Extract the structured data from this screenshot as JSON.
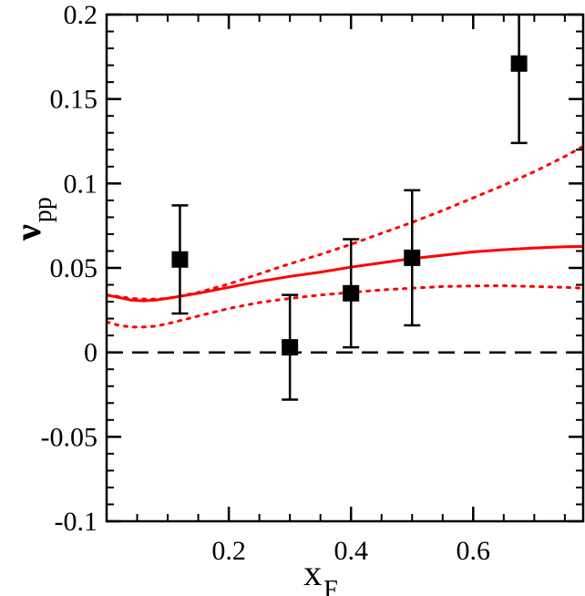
{
  "chart_data": {
    "type": "scatter",
    "title": "",
    "xlabel": {
      "main": "x",
      "sub": "F"
    },
    "ylabel": {
      "main": "ν",
      "sub": "pp"
    },
    "xlim": [
      0.0,
      0.78
    ],
    "ylim": [
      -0.1,
      0.2
    ],
    "grid": false,
    "x_ticks": [
      {
        "value": 0.2,
        "label": "0.2"
      },
      {
        "value": 0.4,
        "label": "0.4"
      },
      {
        "value": 0.6,
        "label": "0.6"
      }
    ],
    "x_minor_step": 0.05,
    "y_ticks": [
      {
        "value": -0.1,
        "label": "-0.1"
      },
      {
        "value": -0.05,
        "label": "-0.05"
      },
      {
        "value": 0.0,
        "label": "0"
      },
      {
        "value": 0.05,
        "label": "0.05"
      },
      {
        "value": 0.1,
        "label": "0.1"
      },
      {
        "value": 0.15,
        "label": "0.15"
      },
      {
        "value": 0.2,
        "label": "0.2"
      }
    ],
    "y_minor_step": 0.01,
    "points": [
      {
        "x": 0.12,
        "y": 0.055,
        "ylow": 0.023,
        "yhigh": 0.087
      },
      {
        "x": 0.3,
        "y": 0.003,
        "ylow": -0.028,
        "yhigh": 0.034
      },
      {
        "x": 0.4,
        "y": 0.035,
        "ylow": 0.003,
        "yhigh": 0.067
      },
      {
        "x": 0.5,
        "y": 0.056,
        "ylow": 0.016,
        "yhigh": 0.096
      },
      {
        "x": 0.675,
        "y": 0.171,
        "ylow": 0.124,
        "yhigh": 0.218
      }
    ],
    "curves": [
      {
        "style": "solid",
        "color": "#ff0000",
        "x": [
          0.0,
          0.02,
          0.04,
          0.06,
          0.08,
          0.1,
          0.15,
          0.2,
          0.25,
          0.3,
          0.35,
          0.4,
          0.45,
          0.5,
          0.55,
          0.6,
          0.65,
          0.7,
          0.75,
          0.78
        ],
        "y": [
          0.034,
          0.0325,
          0.031,
          0.0305,
          0.031,
          0.032,
          0.035,
          0.0385,
          0.042,
          0.045,
          0.0475,
          0.0505,
          0.053,
          0.0555,
          0.0575,
          0.0595,
          0.0608,
          0.0618,
          0.0625,
          0.0627
        ]
      },
      {
        "style": "dotted",
        "color": "#ff0000",
        "x": [
          0.0,
          0.02,
          0.04,
          0.06,
          0.08,
          0.1,
          0.15,
          0.2,
          0.25,
          0.3,
          0.35,
          0.4,
          0.45,
          0.5,
          0.55,
          0.6,
          0.65,
          0.7,
          0.75,
          0.78
        ],
        "y": [
          0.034,
          0.033,
          0.032,
          0.0315,
          0.0315,
          0.032,
          0.0355,
          0.0405,
          0.0465,
          0.0525,
          0.058,
          0.064,
          0.0705,
          0.077,
          0.084,
          0.0915,
          0.099,
          0.107,
          0.116,
          0.122
        ]
      },
      {
        "style": "dotted",
        "color": "#ff0000",
        "x": [
          0.0,
          0.02,
          0.04,
          0.06,
          0.08,
          0.1,
          0.15,
          0.2,
          0.25,
          0.3,
          0.35,
          0.4,
          0.45,
          0.5,
          0.55,
          0.6,
          0.65,
          0.7,
          0.75,
          0.78
        ],
        "y": [
          0.018,
          0.016,
          0.015,
          0.015,
          0.0155,
          0.017,
          0.0215,
          0.026,
          0.0295,
          0.032,
          0.034,
          0.0355,
          0.037,
          0.038,
          0.039,
          0.0393,
          0.0395,
          0.039,
          0.0385,
          0.038
        ]
      },
      {
        "style": "dashed",
        "color": "#000000",
        "x": [
          0.0,
          0.78
        ],
        "y": [
          0.0,
          0.0
        ]
      }
    ]
  }
}
